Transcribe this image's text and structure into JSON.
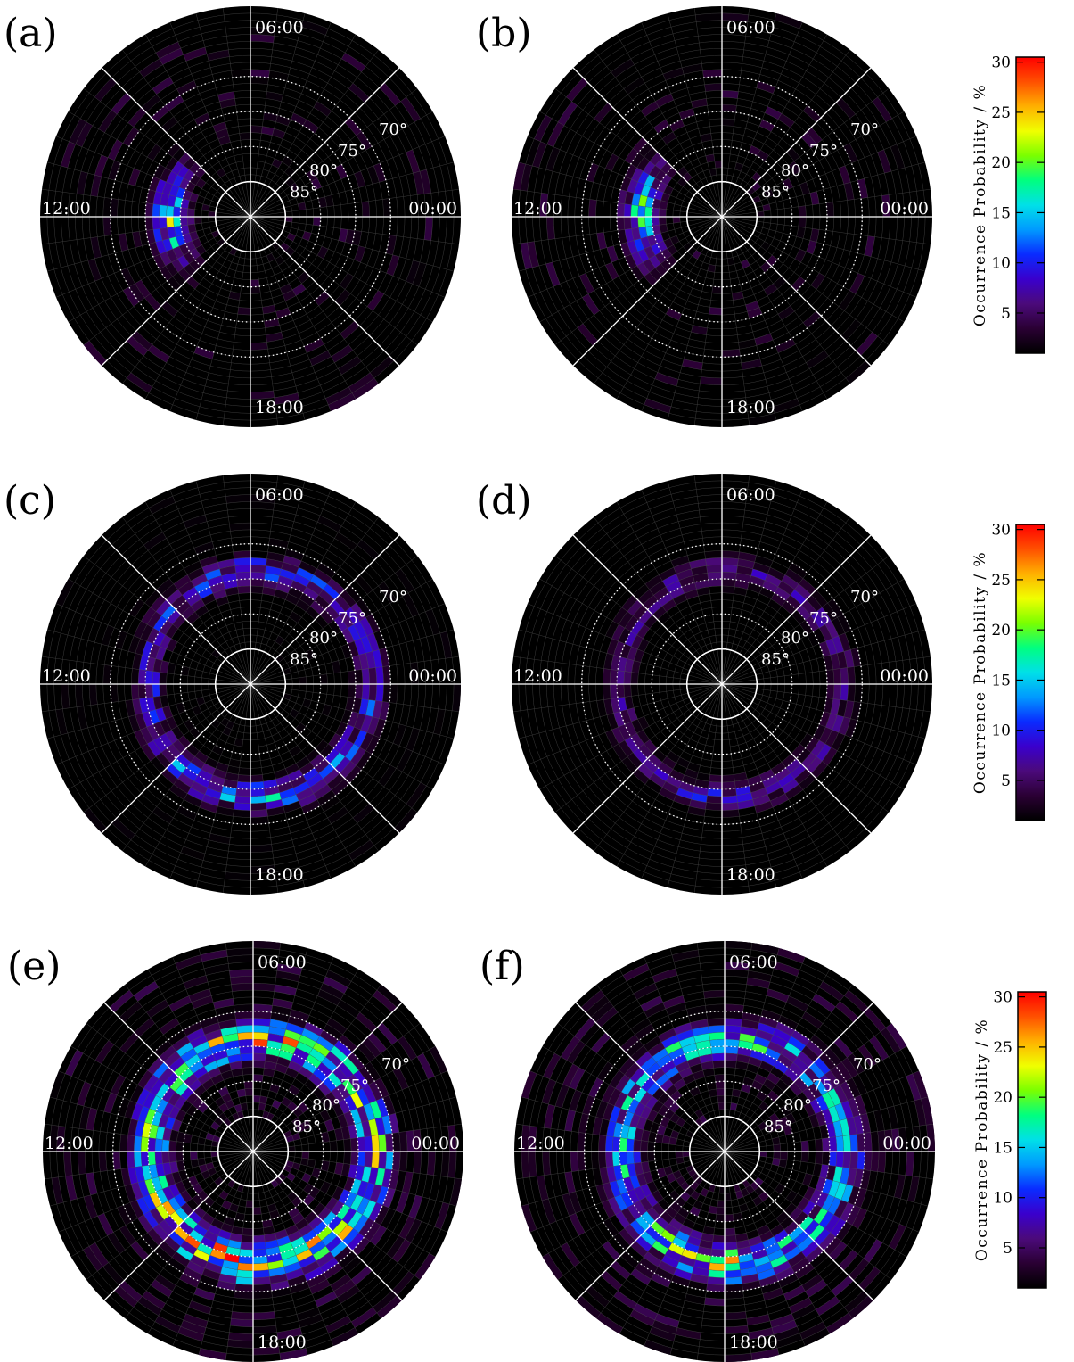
{
  "chart_data": {
    "type": "heatmap",
    "projection": "polar",
    "panels": [
      {
        "label": "(a)",
        "seed": 11,
        "pattern": "dayside-cusp"
      },
      {
        "label": "(b)",
        "seed": 23,
        "pattern": "dayside-cusp"
      },
      {
        "label": "(c)",
        "seed": 37,
        "pattern": "oval-moderate"
      },
      {
        "label": "(d)",
        "seed": 51,
        "pattern": "oval-weak"
      },
      {
        "label": "(e)",
        "seed": 67,
        "pattern": "oval-strong"
      },
      {
        "label": "(f)",
        "seed": 83,
        "pattern": "oval-strong-b"
      }
    ],
    "mlt_labels": {
      "top": "06:00",
      "left": "12:00",
      "right": "00:00",
      "bottom": "18:00"
    },
    "latitude_labels": [
      "70°",
      "75°",
      "80°",
      "85°"
    ],
    "latitude_circles": [
      70,
      75,
      80,
      85
    ],
    "min_latitude": 60,
    "colorbar": {
      "title": "Occurrence Probability / %",
      "ticks": [
        5,
        10,
        15,
        20,
        25,
        30
      ],
      "range": [
        1,
        30.5
      ],
      "colors": [
        "#000000",
        "#2a0033",
        "#4b0a7a",
        "#3a00cc",
        "#0a2bff",
        "#0099ff",
        "#00e0e8",
        "#00ff80",
        "#7aff00",
        "#f0ff00",
        "#ffb000",
        "#ff5000",
        "#ff0000"
      ]
    }
  }
}
